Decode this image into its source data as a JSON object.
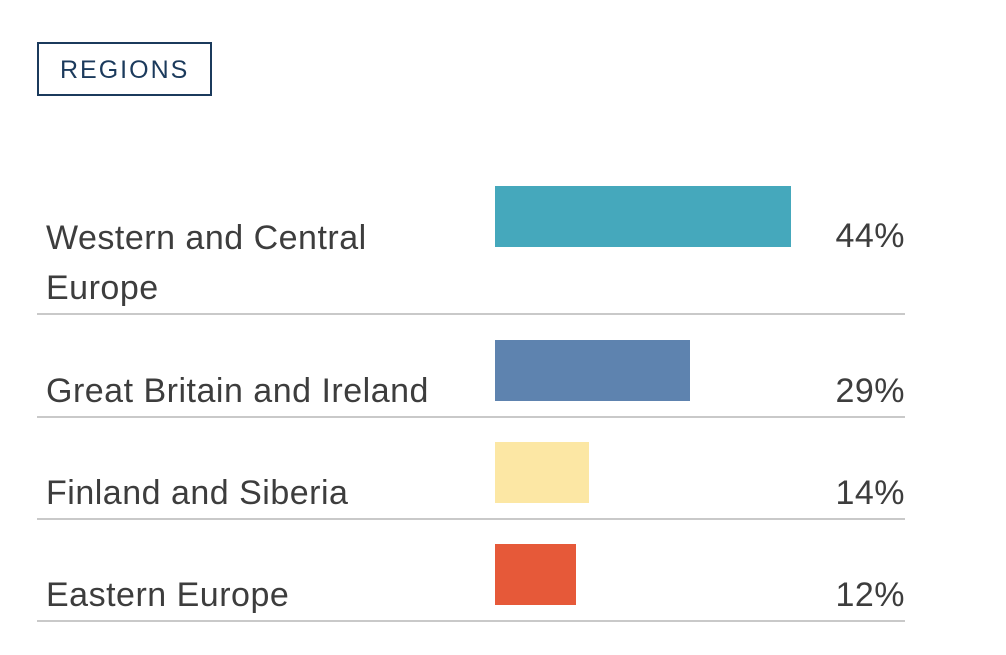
{
  "header": {
    "regions_label": "REGIONS"
  },
  "colors": {
    "navy": "#1B3A5C",
    "label_text": "#3D3D3D",
    "divider": "#C9C9C9",
    "background": "#FFFFFF"
  },
  "chart_data": {
    "type": "bar",
    "orientation": "horizontal",
    "title": "REGIONS",
    "categories": [
      "Western and Central Europe",
      "Great Britain and Ireland",
      "Finland and Siberia",
      "Eastern Europe"
    ],
    "values": [
      44,
      29,
      14,
      12
    ],
    "value_labels": [
      "44%",
      "29%",
      "14%",
      "12%"
    ],
    "bar_colors": [
      "#45A8BC",
      "#5E83AF",
      "#FCE7A4",
      "#E65939"
    ],
    "xlim": [
      0,
      100
    ],
    "grid": false,
    "legend": false
  }
}
